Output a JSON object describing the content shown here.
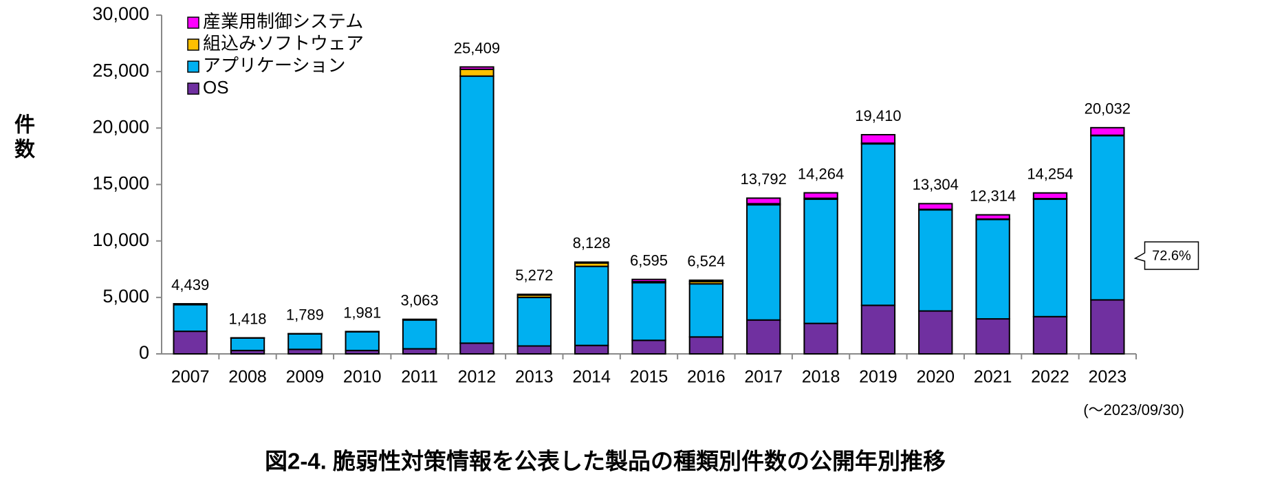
{
  "chart_data": {
    "type": "stacked-bar",
    "title": "図2-4. 脆弱性対策情報を公表した製品の種類別件数の公開年別推移",
    "y_label": "件数",
    "note": "(～2023/09/30)",
    "callout": "72.6%",
    "categories": [
      "2007",
      "2008",
      "2009",
      "2010",
      "2011",
      "2012",
      "2013",
      "2014",
      "2015",
      "2016",
      "2017",
      "2018",
      "2019",
      "2020",
      "2021",
      "2022",
      "2023"
    ],
    "series": [
      {
        "name": "OS",
        "color": "#7030a0",
        "values": [
          2000,
          300,
          400,
          300,
          450,
          950,
          700,
          750,
          1200,
          1500,
          3000,
          2700,
          4300,
          3800,
          3100,
          3300,
          4780
        ]
      },
      {
        "name": "アプリケーション",
        "color": "#00b0f0",
        "values": [
          2350,
          1100,
          1370,
          1660,
          2550,
          23650,
          4300,
          7000,
          5100,
          4700,
          10200,
          11000,
          14300,
          8950,
          8800,
          10400,
          14543
        ]
      },
      {
        "name": "組込みソフトウェア",
        "color": "#ffc000",
        "values": [
          50,
          10,
          10,
          12,
          40,
          600,
          200,
          300,
          100,
          200,
          100,
          80,
          60,
          50,
          40,
          50,
          40
        ]
      },
      {
        "name": "産業用制御システム",
        "color": "#ff00ff",
        "values": [
          39,
          8,
          9,
          9,
          23,
          209,
          72,
          78,
          195,
          124,
          492,
          484,
          750,
          504,
          374,
          504,
          669
        ]
      }
    ],
    "totals": {
      "values": [
        4439,
        1418,
        1789,
        1981,
        3063,
        25409,
        5272,
        8128,
        6595,
        6524,
        13792,
        14264,
        19410,
        13304,
        12314,
        14254,
        20032
      ],
      "value_labels": [
        "4,439",
        "1,418",
        "1,789",
        "1,981",
        "3,063",
        "25,409",
        "5,272",
        "8,128",
        "6,595",
        "6,524",
        "13,792",
        "14,264",
        "19,410",
        "13,304",
        "12,314",
        "14,254",
        "20,032"
      ]
    },
    "ylim": [
      0,
      30000
    ],
    "yticks": [
      0,
      {
        "value": 5000,
        "label": "5,000"
      },
      {
        "value": 10000,
        "label": "10,000"
      },
      {
        "value": 15000,
        "label": "15,000"
      },
      {
        "value": 20000,
        "label": "20,000"
      },
      {
        "value": 25000,
        "label": "25,000"
      },
      {
        "value": 30000,
        "label": "30,000"
      }
    ],
    "legend": "top-left"
  }
}
